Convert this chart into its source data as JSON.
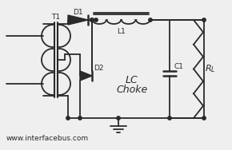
{
  "bg_color": "#efefef",
  "line_color": "#2a2a2a",
  "text_color": "#2a2a2a",
  "website": "www.interfacebus.com",
  "label_T1": "T1",
  "label_D1": "D1",
  "label_D2": "D2",
  "label_L1": "L1",
  "label_C1": "C1",
  "label_lc": "LC",
  "label_choke": "Choke"
}
